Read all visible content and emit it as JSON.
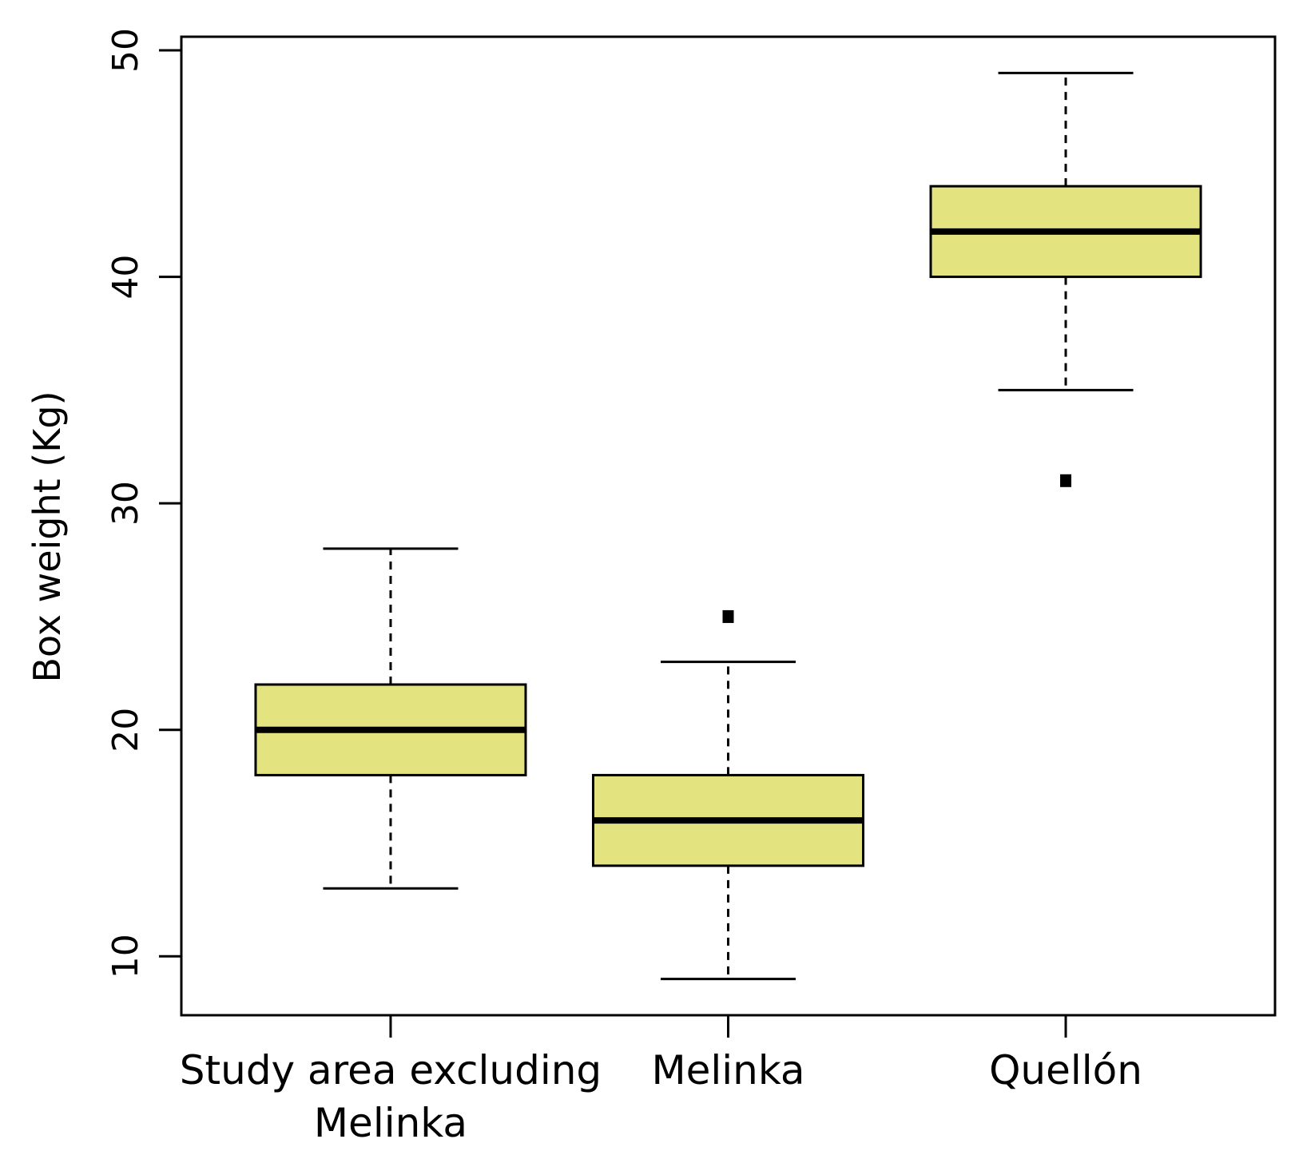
{
  "chart_data": {
    "type": "boxplot",
    "title": "",
    "xlabel": "",
    "ylabel": "Box weight (Kg)",
    "ylim": [
      7.4,
      50.6
    ],
    "yticks": [
      10,
      20,
      30,
      40,
      50
    ],
    "ytick_labels": [
      "10",
      "20",
      "30",
      "40",
      "50"
    ],
    "box_color": "#e3e480",
    "categories": [
      {
        "label_lines": [
          "Study area excluding",
          "Melinka"
        ]
      },
      {
        "label_lines": [
          "Melinka"
        ]
      },
      {
        "label_lines": [
          "Quellón"
        ]
      }
    ],
    "boxes": [
      {
        "whisker_low": 13,
        "q1": 18,
        "median": 20,
        "q3": 22,
        "whisker_high": 28,
        "outliers": []
      },
      {
        "whisker_low": 9,
        "q1": 14,
        "median": 16,
        "q3": 18,
        "whisker_high": 23,
        "outliers": [
          25
        ]
      },
      {
        "whisker_low": 35,
        "q1": 40,
        "median": 42,
        "q3": 44,
        "whisker_high": 49,
        "outliers": [
          31
        ]
      }
    ]
  }
}
